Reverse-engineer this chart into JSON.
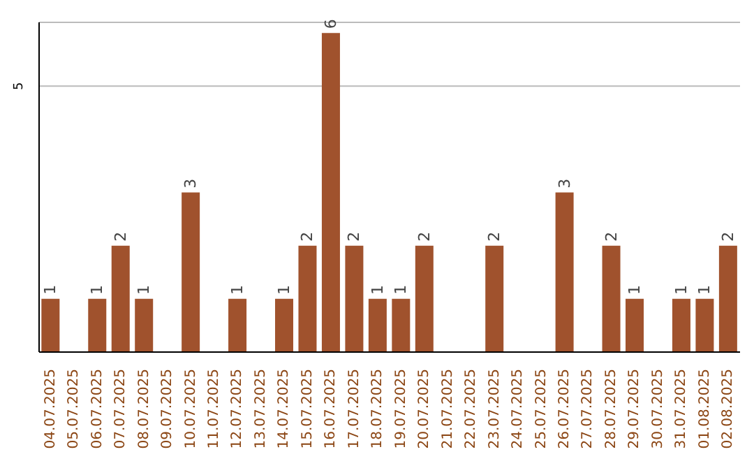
{
  "chart_data": {
    "type": "bar",
    "categories": [
      "04.07.2025",
      "05.07.2025",
      "06.07.2025",
      "07.07.2025",
      "08.07.2025",
      "09.07.2025",
      "10.07.2025",
      "11.07.2025",
      "12.07.2025",
      "13.07.2025",
      "14.07.2025",
      "15.07.2025",
      "16.07.2025",
      "17.07.2025",
      "18.07.2025",
      "19.07.2025",
      "20.07.2025",
      "21.07.2025",
      "22.07.2025",
      "23.07.2025",
      "24.07.2025",
      "25.07.2025",
      "26.07.2025",
      "27.07.2025",
      "28.07.2025",
      "29.07.2025",
      "30.07.2025",
      "31.07.2025",
      "01.08.2025",
      "02.08.2025"
    ],
    "values": [
      1,
      0,
      1,
      2,
      1,
      0,
      3,
      0,
      1,
      0,
      1,
      2,
      6,
      2,
      1,
      1,
      2,
      0,
      0,
      2,
      0,
      0,
      3,
      0,
      2,
      1,
      0,
      1,
      1,
      2
    ],
    "value_labels": [
      "1",
      null,
      "1",
      "2",
      "1",
      null,
      "3",
      null,
      "1",
      null,
      "1",
      "2",
      "6",
      "2",
      "1",
      "1",
      "2",
      null,
      null,
      "2",
      null,
      null,
      "3",
      null,
      "2",
      "1",
      null,
      "1",
      "1",
      "2"
    ],
    "color": "#a0522d",
    "ylim": [
      0,
      6.2
    ],
    "yticks": [
      5
    ],
    "grid": "y"
  }
}
